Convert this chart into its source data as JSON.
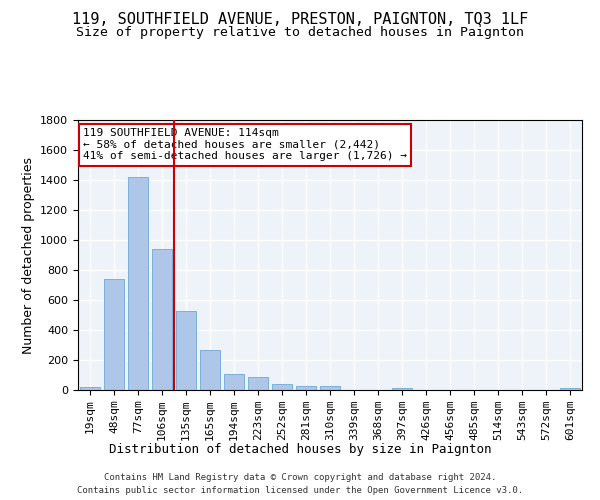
{
  "title": "119, SOUTHFIELD AVENUE, PRESTON, PAIGNTON, TQ3 1LF",
  "subtitle": "Size of property relative to detached houses in Paignton",
  "xlabel": "Distribution of detached houses by size in Paignton",
  "ylabel": "Number of detached properties",
  "categories": [
    "19sqm",
    "48sqm",
    "77sqm",
    "106sqm",
    "135sqm",
    "165sqm",
    "194sqm",
    "223sqm",
    "252sqm",
    "281sqm",
    "310sqm",
    "339sqm",
    "368sqm",
    "397sqm",
    "426sqm",
    "456sqm",
    "485sqm",
    "514sqm",
    "543sqm",
    "572sqm",
    "601sqm"
  ],
  "values": [
    22,
    740,
    1420,
    940,
    530,
    265,
    105,
    90,
    40,
    28,
    28,
    0,
    0,
    15,
    0,
    0,
    0,
    0,
    0,
    0,
    15
  ],
  "bar_color": "#aec6e8",
  "bar_edgecolor": "#5a9fd4",
  "vline_pos": 3.5,
  "vline_color": "#cc0000",
  "annotation_text": "119 SOUTHFIELD AVENUE: 114sqm\n← 58% of detached houses are smaller (2,442)\n41% of semi-detached houses are larger (1,726) →",
  "annotation_box_color": "#cc0000",
  "annotation_fontsize": 8,
  "title_fontsize": 11,
  "subtitle_fontsize": 9.5,
  "xlabel_fontsize": 9,
  "ylabel_fontsize": 9,
  "tick_fontsize": 8,
  "footer_line1": "Contains HM Land Registry data © Crown copyright and database right 2024.",
  "footer_line2": "Contains public sector information licensed under the Open Government Licence v3.0.",
  "ylim": [
    0,
    1800
  ],
  "yticks": [
    0,
    200,
    400,
    600,
    800,
    1000,
    1200,
    1400,
    1600,
    1800
  ],
  "bg_color": "#eef2f9",
  "grid_color": "#ffffff",
  "fig_bg": "#ffffff"
}
